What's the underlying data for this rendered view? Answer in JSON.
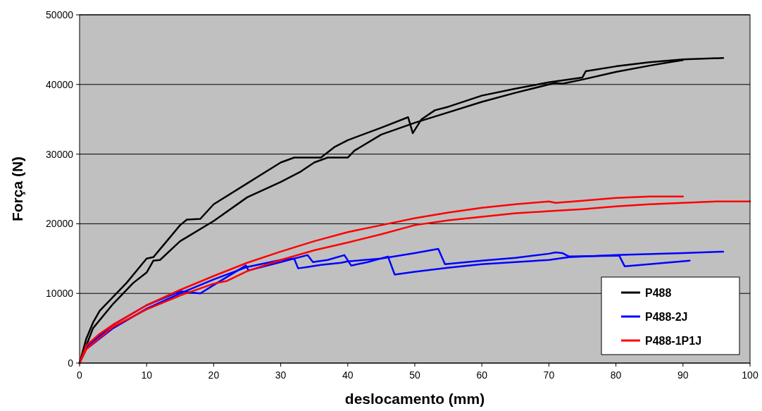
{
  "chart_data": {
    "type": "line",
    "xlabel": "deslocamento (mm)",
    "ylabel": "Força (N)",
    "xlim": [
      0,
      100
    ],
    "ylim": [
      0,
      50000
    ],
    "xticks": [
      0,
      10,
      20,
      30,
      40,
      50,
      60,
      70,
      80,
      90,
      100
    ],
    "yticks": [
      0,
      10000,
      20000,
      30000,
      40000,
      50000
    ],
    "grid": "y",
    "legend": "bottom right",
    "marker": "none",
    "line_style": "solid",
    "series": [
      {
        "name": "P488",
        "color": "#000000",
        "x": [
          0,
          1,
          2,
          3,
          5,
          7,
          10,
          11,
          13,
          15,
          16,
          18,
          20,
          25,
          30,
          32,
          36,
          38,
          40,
          45,
          49,
          49.7,
          51,
          53,
          55,
          60,
          65,
          70,
          75,
          75.5,
          80,
          85,
          90,
          96
        ],
        "values": [
          0,
          3500,
          5800,
          7500,
          9500,
          11500,
          15000,
          15200,
          17500,
          19800,
          20600,
          20700,
          22800,
          25800,
          28800,
          29500,
          29500,
          31000,
          32000,
          33800,
          35300,
          33000,
          35000,
          36300,
          36800,
          38400,
          39400,
          40300,
          41000,
          41900,
          42600,
          43200,
          43600,
          43800
        ]
      },
      {
        "color": "#000000",
        "x": [
          0,
          2,
          5,
          8,
          10,
          11,
          12,
          15,
          20,
          25,
          30,
          33,
          35,
          37,
          39,
          40,
          41,
          45,
          50,
          55,
          60,
          65,
          70,
          71,
          72,
          75,
          80,
          85,
          88,
          90
        ],
        "values": [
          0,
          5000,
          8500,
          11500,
          13000,
          14700,
          14800,
          17500,
          20400,
          23800,
          26000,
          27500,
          28800,
          29500,
          29500,
          29500,
          30500,
          32800,
          34500,
          36000,
          37500,
          38800,
          40000,
          40200,
          40100,
          40700,
          41800,
          42700,
          43200,
          43500
        ]
      },
      {
        "name": "P488-2J",
        "color": "#0000ff",
        "x": [
          0,
          1,
          5,
          10,
          15,
          18,
          20,
          24.8,
          25.2,
          30,
          34,
          34.8,
          37,
          39.5,
          40.5,
          43,
          46,
          47,
          50,
          55,
          60,
          70,
          73,
          80,
          90,
          96
        ],
        "values": [
          0,
          2300,
          5500,
          8300,
          10300,
          10000,
          11200,
          14000,
          13300,
          14500,
          15500,
          14500,
          14800,
          15500,
          14000,
          14500,
          15300,
          12700,
          13100,
          13700,
          14200,
          14800,
          15200,
          15500,
          15800,
          16000
        ]
      },
      {
        "color": "#0000ff",
        "x": [
          0,
          1,
          5,
          10,
          15,
          20,
          25,
          30,
          32,
          32.6,
          34,
          36,
          39,
          40,
          45,
          50,
          53.5,
          54.5,
          60,
          65,
          70,
          71,
          72,
          73,
          80,
          80.5,
          81.3,
          85,
          91
        ],
        "values": [
          0,
          2000,
          5000,
          7800,
          10000,
          12000,
          13800,
          14800,
          15000,
          13600,
          13800,
          14100,
          14400,
          14600,
          15000,
          15800,
          16400,
          14200,
          14700,
          15100,
          15700,
          15900,
          15800,
          15300,
          15400,
          15400,
          13900,
          14200,
          14700
        ]
      },
      {
        "name": "P488-1P1J",
        "color": "#ff0000",
        "x": [
          0,
          1,
          3,
          5,
          10,
          15,
          20,
          25,
          30,
          35,
          40,
          45,
          50,
          55,
          60,
          65,
          70,
          71,
          75,
          80,
          85,
          90
        ],
        "values": [
          0,
          2500,
          4200,
          5500,
          8300,
          10500,
          12500,
          14400,
          16000,
          17500,
          18800,
          19800,
          20800,
          21600,
          22300,
          22800,
          23200,
          23000,
          23300,
          23700,
          23900,
          23900
        ]
      },
      {
        "color": "#ff0000",
        "x": [
          0,
          1,
          5,
          10,
          15,
          20,
          22,
          25,
          30,
          35,
          40,
          45,
          50,
          55,
          60,
          65,
          70,
          75,
          80,
          85,
          90,
          95,
          100
        ],
        "values": [
          0,
          2000,
          5200,
          7700,
          9700,
          11400,
          11800,
          13200,
          14800,
          16200,
          17300,
          18500,
          19800,
          20500,
          21000,
          21500,
          21800,
          22100,
          22500,
          22800,
          23000,
          23200,
          23200
        ]
      }
    ]
  }
}
